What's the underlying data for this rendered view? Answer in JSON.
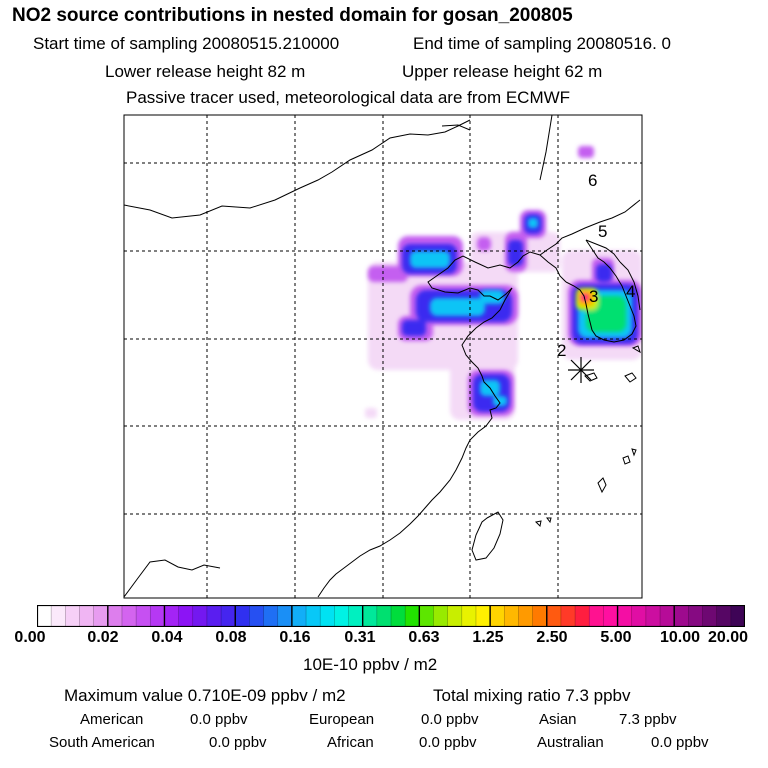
{
  "header": {
    "title": "NO2 source contributions in nested domain for gosan_200805",
    "start_time": "Start time of sampling 20080515.210000",
    "end_time": "End time of sampling 20080516.     0",
    "lower_release": "Lower release height   82 m",
    "upper_release": "Upper release height   62 m",
    "tracer_note": "Passive tracer used, meteorological data are from ECMWF"
  },
  "map": {
    "markers": [
      "2",
      "3",
      "4",
      "5",
      "6"
    ]
  },
  "colorbar": {
    "tick_labels": [
      "0.00",
      "0.02",
      "0.04",
      "0.08",
      "0.16",
      "0.31",
      "0.63",
      "1.25",
      "2.50",
      "5.00",
      "10.00",
      "20.00"
    ],
    "colors": [
      "#ffffff",
      "#fbe9fb",
      "#f6d0f7",
      "#f0b5f3",
      "#e79cf0",
      "#dd7eed",
      "#d364ef",
      "#c650f2",
      "#b638f4",
      "#a424f5",
      "#8c14f5",
      "#7418f0",
      "#5a1ef0",
      "#4525ef",
      "#3030f0",
      "#2650f2",
      "#1f6ff4",
      "#1a8ff6",
      "#12aef7",
      "#08c8f7",
      "#00e2f2",
      "#00f2e4",
      "#00f0c0",
      "#00e89a",
      "#00e070",
      "#00dd3c",
      "#22e300",
      "#5de600",
      "#98ea00",
      "#c8ee00",
      "#e8f200",
      "#fff000",
      "#ffd400",
      "#ffb800",
      "#ff9a00",
      "#ff7a00",
      "#ff5a10",
      "#ff3a28",
      "#ff1e40",
      "#ff1290",
      "#ff0fa0",
      "#f40ea4",
      "#e00ea4",
      "#cc0ea0",
      "#b60c98",
      "#9e0a8e",
      "#860a82",
      "#6e0872",
      "#560664",
      "#3e0456"
    ],
    "units": "10E-10 ppbv / m2"
  },
  "summary": {
    "max_value": "Maximum value  0.710E-09 ppbv / m2",
    "total_mixing": "Total mixing ratio        7.3 ppbv",
    "regions": [
      {
        "name": "American",
        "value": "0.0 ppbv"
      },
      {
        "name": "European",
        "value": "0.0 ppbv"
      },
      {
        "name": "Asian",
        "value": "7.3 ppbv"
      },
      {
        "name": "South American",
        "value": "0.0 ppbv"
      },
      {
        "name": "African",
        "value": "0.0 ppbv"
      },
      {
        "name": "Australian",
        "value": "0.0 ppbv"
      }
    ]
  }
}
